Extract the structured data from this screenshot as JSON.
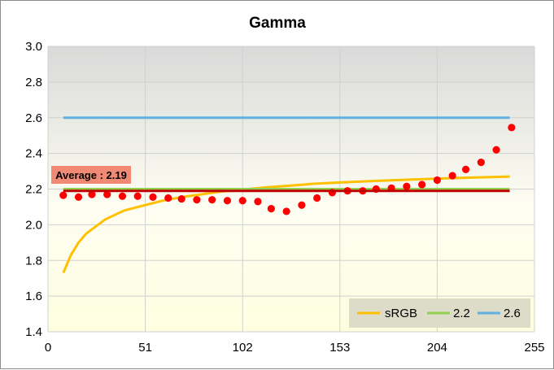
{
  "chart_data": {
    "type": "line",
    "title": "Gamma",
    "xlabel": "",
    "ylabel": "",
    "xlim": [
      0,
      255
    ],
    "ylim": [
      1.4,
      3.0
    ],
    "x_ticks": [
      0,
      51,
      102,
      153,
      204,
      255
    ],
    "y_ticks": [
      1.4,
      1.6,
      1.8,
      2.0,
      2.2,
      2.4,
      2.6,
      2.8,
      3.0
    ],
    "y_tick_labels": [
      "1.4",
      "1.6",
      "1.8",
      "2.0",
      "2.2",
      "2.4",
      "2.6",
      "2.8",
      "3.0"
    ],
    "grid": true,
    "legend_position": "bottom-right",
    "series": [
      {
        "name": "sRGB",
        "color": "#ffc000",
        "x": [
          8,
          12,
          16,
          20,
          25,
          30,
          40,
          51,
          60,
          70,
          80,
          90,
          102,
          115,
          128,
          140,
          153,
          170,
          187,
          204,
          220,
          242
        ],
        "y": [
          1.73,
          1.83,
          1.9,
          1.95,
          1.99,
          2.03,
          2.08,
          2.11,
          2.135,
          2.155,
          2.17,
          2.185,
          2.197,
          2.21,
          2.22,
          2.23,
          2.237,
          2.245,
          2.252,
          2.259,
          2.264,
          2.27
        ]
      },
      {
        "name": "2.2",
        "color": "#92d050",
        "x": [
          8,
          242
        ],
        "y": [
          2.2,
          2.2
        ]
      },
      {
        "name": "2.6",
        "color": "#5fb0e0",
        "x": [
          8,
          242
        ],
        "y": [
          2.6,
          2.6
        ]
      }
    ],
    "measured_points": {
      "color": "#ff0000",
      "x": [
        8,
        16,
        23,
        31,
        39,
        47,
        55,
        63,
        70,
        78,
        86,
        94,
        102,
        110,
        117,
        125,
        133,
        141,
        149,
        157,
        165,
        172,
        180,
        188,
        196,
        204,
        212,
        219,
        227,
        235,
        243
      ],
      "y": [
        2.165,
        2.155,
        2.17,
        2.17,
        2.16,
        2.16,
        2.155,
        2.15,
        2.145,
        2.14,
        2.14,
        2.135,
        2.135,
        2.13,
        2.09,
        2.075,
        2.11,
        2.15,
        2.18,
        2.19,
        2.19,
        2.2,
        2.205,
        2.215,
        2.225,
        2.25,
        2.275,
        2.31,
        2.35,
        2.42,
        2.545
      ]
    },
    "average": {
      "label": "Average : 2.19",
      "value": 2.19,
      "color": "#c00000",
      "label_bg": "#f08a74"
    },
    "plot_bg_top": "#d9d9d9",
    "plot_bg_bottom": "#ffffe0",
    "legend_bg": "#dcdcc8"
  }
}
